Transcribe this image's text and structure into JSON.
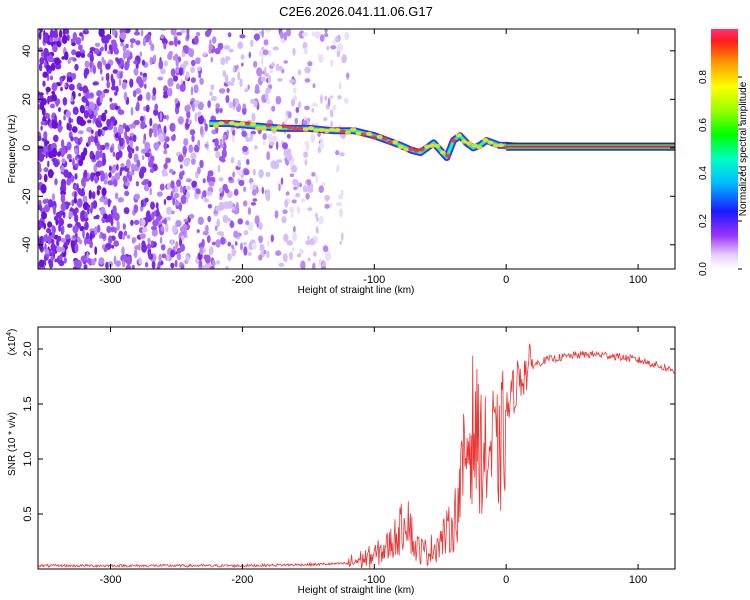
{
  "title": "C2E6.2026.041.11.06.G17",
  "chart_data": [
    {
      "type": "heatmap",
      "name": "spectrogram",
      "xlabel": "Height of straight line (km)",
      "ylabel": "Frequency (Hz)",
      "xlim": [
        -355,
        128
      ],
      "ylim": [
        -50,
        49
      ],
      "x_ticks": [
        -300,
        -200,
        -100,
        0,
        100
      ],
      "x_tick_labels": [
        "-300",
        "-200",
        "-100",
        "0",
        "100"
      ],
      "y_ticks": [
        -40,
        -20,
        0,
        20,
        40
      ],
      "y_tick_labels": [
        "-40",
        "-20",
        "0",
        "20",
        "40"
      ],
      "noise_region_x": [
        -355,
        -130
      ],
      "signal_track": {
        "x": [
          -225,
          -210,
          -190,
          -170,
          -150,
          -130,
          -115,
          -100,
          -90,
          -80,
          -72,
          -65,
          -60,
          -55,
          -50,
          -45,
          -40,
          -35,
          -30,
          -25,
          -20,
          -15,
          -10,
          -5,
          0,
          10,
          50,
          100,
          128
        ],
        "freq": [
          10,
          10,
          9,
          8,
          8,
          7,
          7,
          5,
          3,
          1,
          -1,
          -2,
          0,
          2,
          -1,
          -4,
          3,
          5,
          2,
          0,
          1,
          3,
          2,
          1,
          1,
          0.5,
          0.5,
          0.5,
          0.5
        ]
      },
      "colorbar": {
        "label": "Normalized spectral amplitude",
        "range": [
          0,
          1
        ],
        "ticks": [
          0.0,
          0.2,
          0.4,
          0.6,
          0.8
        ],
        "tick_labels": [
          "0.0",
          "0.2",
          "0.4",
          "0.6",
          "0.8"
        ]
      },
      "grid": false
    },
    {
      "type": "line",
      "name": "snr",
      "xlabel": "Height of straight line (km)",
      "ylabel": "SNR (10 * v/v)",
      "y_scale_label": "(x10",
      "y_scale_exponent": "4",
      "xlim": [
        -355,
        128
      ],
      "ylim": [
        0,
        2.2
      ],
      "x_ticks": [
        -300,
        -200,
        -100,
        0,
        100
      ],
      "x_tick_labels": [
        "-300",
        "-200",
        "-100",
        "0",
        "100"
      ],
      "y_ticks": [
        0.5,
        1.0,
        1.5,
        2.0
      ],
      "y_tick_labels": [
        "0.5",
        "1.0",
        "1.5",
        "2.0"
      ],
      "series": [
        {
          "name": "SNR",
          "color": "#ee3333",
          "x": [
            -355,
            -300,
            -250,
            -200,
            -150,
            -120,
            -100,
            -90,
            -80,
            -75,
            -70,
            -60,
            -50,
            -40,
            -35,
            -30,
            -25,
            -20,
            -15,
            -10,
            -5,
            0,
            5,
            10,
            20,
            30,
            40,
            50,
            60,
            70,
            80,
            90,
            100,
            110,
            120,
            128
          ],
          "values": [
            0.03,
            0.03,
            0.03,
            0.03,
            0.04,
            0.05,
            0.12,
            0.2,
            0.35,
            0.55,
            0.2,
            0.15,
            0.25,
            0.4,
            0.7,
            1.1,
            1.3,
            1.1,
            1.0,
            1.1,
            1.0,
            1.4,
            1.6,
            1.75,
            1.85,
            1.9,
            1.92,
            1.94,
            1.95,
            1.95,
            1.94,
            1.92,
            1.9,
            1.87,
            1.83,
            1.8
          ]
        }
      ],
      "grid": false
    }
  ]
}
